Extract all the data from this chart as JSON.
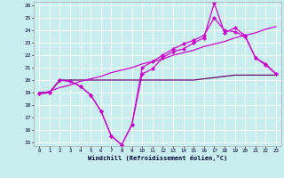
{
  "background_color": "#c8eef0",
  "grid_color": "#ffffff",
  "line_color_main": "#cc00cc",
  "line_color_dark": "#660066",
  "x_hours": [
    0,
    1,
    2,
    3,
    4,
    5,
    6,
    7,
    8,
    9,
    10,
    11,
    12,
    13,
    14,
    15,
    16,
    17,
    18,
    19,
    20,
    21,
    22,
    23
  ],
  "windchill_line": [
    18.9,
    19.0,
    20.0,
    19.9,
    19.5,
    18.8,
    17.5,
    15.5,
    14.8,
    16.4,
    20.5,
    20.9,
    21.8,
    22.3,
    22.5,
    23.0,
    23.4,
    26.2,
    23.8,
    24.2,
    23.6,
    21.8,
    21.3,
    20.5
  ],
  "temp_flat_line": [
    19.0,
    19.0,
    20.0,
    20.0,
    20.0,
    20.0,
    20.0,
    20.0,
    20.0,
    20.0,
    20.0,
    20.0,
    20.0,
    20.0,
    20.0,
    20.0,
    20.1,
    20.2,
    20.3,
    20.4,
    20.4,
    20.4,
    20.4,
    20.4
  ],
  "linear_line": [
    18.9,
    19.1,
    19.4,
    19.6,
    19.9,
    20.1,
    20.3,
    20.6,
    20.8,
    21.0,
    21.3,
    21.5,
    21.7,
    22.0,
    22.2,
    22.4,
    22.7,
    22.9,
    23.1,
    23.4,
    23.6,
    23.8,
    24.1,
    24.3
  ],
  "apparent_line": [
    18.9,
    19.0,
    20.0,
    19.9,
    19.5,
    18.8,
    17.5,
    15.5,
    14.8,
    16.4,
    21.0,
    21.5,
    22.0,
    22.5,
    22.9,
    23.2,
    23.6,
    25.0,
    24.0,
    23.9,
    23.5,
    21.8,
    21.2,
    20.5
  ],
  "ylim_min": 15,
  "ylim_max": 26,
  "yticks": [
    15,
    16,
    17,
    18,
    19,
    20,
    21,
    22,
    23,
    24,
    25,
    26
  ],
  "xticks": [
    0,
    1,
    2,
    3,
    4,
    5,
    6,
    7,
    8,
    9,
    10,
    11,
    12,
    13,
    14,
    15,
    16,
    17,
    18,
    19,
    20,
    21,
    22,
    23
  ],
  "xlabel": "Windchill (Refroidissement éolien,°C)"
}
